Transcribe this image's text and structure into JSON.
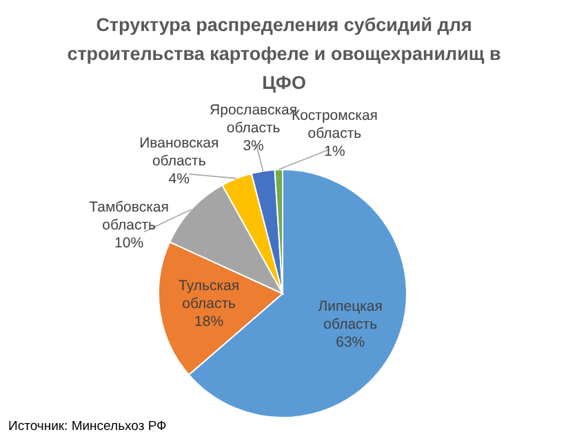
{
  "chart_data": {
    "type": "pie",
    "title": "Структура распределения субсидий для строительства картофеле и овощехранилищ в ЦФО",
    "categories": [
      "Липецкая область",
      "Тульская область",
      "Тамбовская область",
      "Ивановская область",
      "Ярославская область",
      "Костромская область"
    ],
    "values": [
      63,
      18,
      10,
      4,
      3,
      1
    ],
    "value_labels": [
      "63%",
      "18%",
      "10%",
      "4%",
      "3%",
      "1%"
    ],
    "colors": [
      "#5b9bd5",
      "#ed7d31",
      "#a5a5a5",
      "#ffc000",
      "#4472c4",
      "#70ad47"
    ],
    "annotations": [
      "Источник: Минсельхоз РФ"
    ]
  }
}
